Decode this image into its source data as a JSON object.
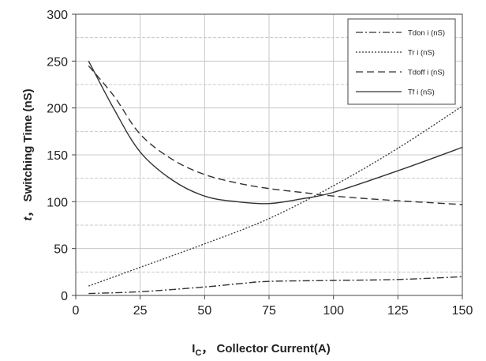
{
  "chart_data": {
    "type": "line",
    "xlabel_main": "I",
    "xlabel_sub": "C",
    "xlabel_rest": "， Collector Current(A)",
    "ylabel_italic": "t",
    "ylabel_rest": "， Switching Time (nS)",
    "xlim": [
      0,
      150
    ],
    "ylim": [
      0,
      300
    ],
    "x_ticks": [
      0,
      25,
      50,
      75,
      100,
      125,
      150
    ],
    "y_ticks": [
      0,
      50,
      100,
      150,
      200,
      250,
      300
    ],
    "grid": true,
    "legend_position": "top-right",
    "series": [
      {
        "name": "Tdon i (nS)",
        "dash": "dashdot",
        "x": [
          5,
          25,
          50,
          65,
          75,
          100,
          125,
          150
        ],
        "y": [
          2,
          4,
          9,
          13,
          15,
          16,
          17,
          20
        ]
      },
      {
        "name": "Tr i (nS)",
        "dash": "dotted",
        "x": [
          5,
          25,
          50,
          75,
          100,
          125,
          150
        ],
        "y": [
          10,
          30,
          55,
          82,
          117,
          157,
          202
        ]
      },
      {
        "name": "Tdoff i (nS)",
        "dash": "dashed",
        "x": [
          5,
          15,
          25,
          37.5,
          50,
          62.5,
          75,
          87.5,
          100,
          125,
          150
        ],
        "y": [
          245,
          212,
          172,
          145,
          129,
          120,
          114,
          110,
          106,
          101,
          97
        ]
      },
      {
        "name": "Tf i (nS)",
        "dash": "solid",
        "x": [
          5,
          15,
          25,
          37.5,
          50,
          62.5,
          75,
          87.5,
          100,
          125,
          150
        ],
        "y": [
          250,
          198,
          153,
          123,
          106,
          100,
          98,
          103,
          110,
          133,
          158
        ]
      }
    ]
  }
}
